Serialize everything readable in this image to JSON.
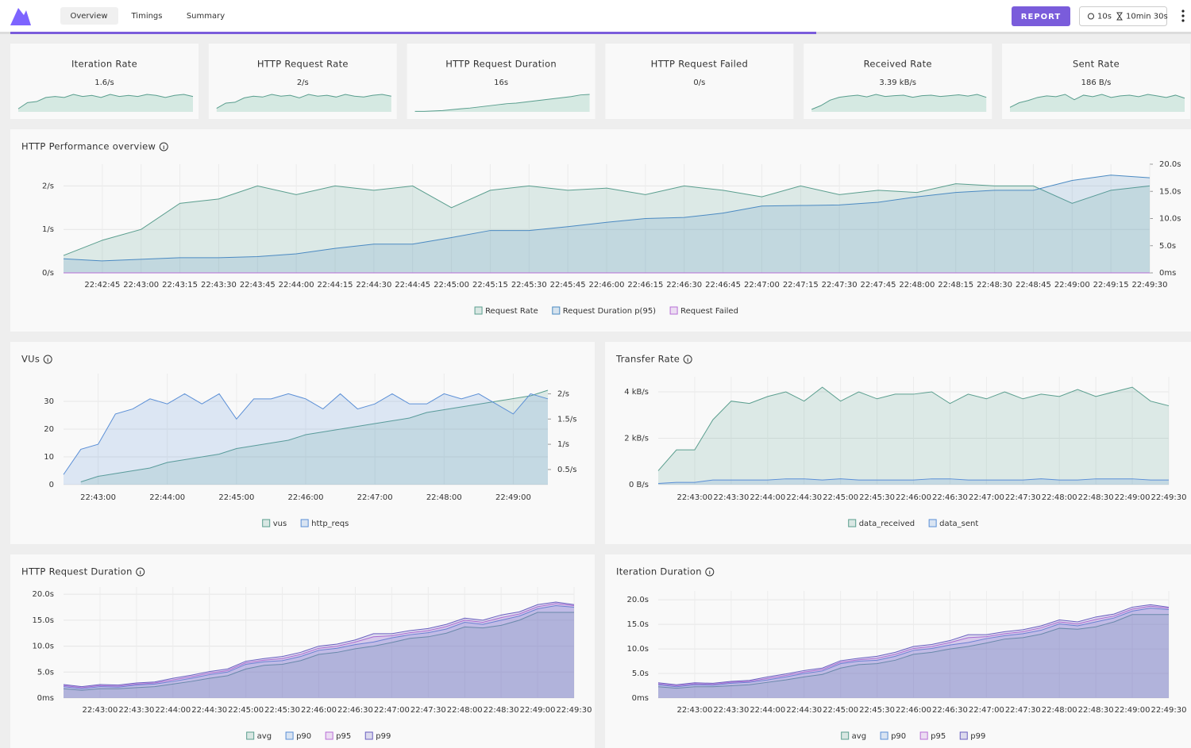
{
  "header": {
    "tabs": [
      "Overview",
      "Timings",
      "Summary"
    ],
    "button": "REPORT",
    "period": "10s",
    "duration": "10min 30s"
  },
  "cards": [
    {
      "title": "Iteration Rate",
      "value": "1.6/s",
      "sparkline": [
        0.3,
        0.9,
        1.0,
        1.4,
        1.5,
        1.4,
        1.7,
        1.5,
        1.6,
        1.4,
        1.7,
        1.5,
        1.6,
        1.5,
        1.7,
        1.6,
        1.4,
        1.6,
        1.7,
        1.5
      ]
    },
    {
      "title": "HTTP Request Rate",
      "value": "2/s",
      "sparkline": [
        0.4,
        1.0,
        1.1,
        1.6,
        1.8,
        1.7,
        2.0,
        1.8,
        1.9,
        1.6,
        2.0,
        1.8,
        1.9,
        1.7,
        2.0,
        1.8,
        1.7,
        1.9,
        2.0,
        1.8
      ]
    },
    {
      "title": "HTTP Request Duration",
      "value": "16s",
      "sparkline": [
        0.5,
        0.5,
        0.8,
        1.2,
        2.0,
        2.8,
        3.5,
        4.5,
        5.5,
        6.5,
        7.5,
        8.0,
        9.0,
        10.0,
        11.0,
        12.0,
        13.0,
        14.0,
        15.5,
        16.0
      ]
    },
    {
      "title": "HTTP Request Failed",
      "value": "0/s"
    },
    {
      "title": "Received Rate",
      "value": "3.39 kB/s",
      "sparkline": [
        0.6,
        1.5,
        2.8,
        3.5,
        3.8,
        4.0,
        3.6,
        4.2,
        3.7,
        3.9,
        4.0,
        3.5,
        3.9,
        4.0,
        3.7,
        3.9,
        4.1,
        3.8,
        4.2,
        3.5
      ]
    },
    {
      "title": "Sent Rate",
      "value": "186 B/s",
      "sparkline": [
        60,
        120,
        150,
        190,
        210,
        200,
        230,
        160,
        220,
        200,
        230,
        190,
        210,
        220,
        200,
        230,
        210,
        190,
        220,
        180
      ]
    }
  ],
  "charts": [
    {
      "type": "area",
      "title": "HTTP Performance overview",
      "grid": true,
      "x": [
        "22:42:30",
        "22:42:45",
        "22:43:00",
        "22:43:15",
        "22:43:30",
        "22:43:45",
        "22:44:00",
        "22:44:15",
        "22:44:30",
        "22:44:45",
        "22:45:00",
        "22:45:15",
        "22:45:30",
        "22:45:45",
        "22:46:00",
        "22:46:15",
        "22:46:30",
        "22:46:45",
        "22:47:00",
        "22:47:15",
        "22:47:30",
        "22:47:45",
        "22:48:00",
        "22:48:15",
        "22:48:30",
        "22:48:45",
        "22:49:00",
        "22:49:15",
        "22:49:30"
      ],
      "xlim": [
        "22:42:30",
        "22:49:30"
      ],
      "xticks": [
        "22:42:45",
        "22:43:00",
        "22:43:15",
        "22:43:30",
        "22:43:45",
        "22:44:00",
        "22:44:15",
        "22:44:30",
        "22:44:45",
        "22:45:00",
        "22:45:15",
        "22:45:30",
        "22:45:45",
        "22:46:00",
        "22:46:15",
        "22:46:30",
        "22:46:45",
        "22:47:00",
        "22:47:15",
        "22:47:30",
        "22:47:45",
        "22:48:00",
        "22:48:15",
        "22:48:30",
        "22:48:45",
        "22:49:00",
        "22:49:15",
        "22:49:30"
      ],
      "ylim": [
        0,
        2.5
      ],
      "yticks": [
        {
          "value": 0,
          "label": "0/s"
        },
        {
          "value": 1,
          "label": "1/s"
        },
        {
          "value": 2,
          "label": "2/s"
        }
      ],
      "y2lim": [
        0,
        20
      ],
      "y2ticks": [
        {
          "value": 0,
          "label": "0ms"
        },
        {
          "value": 5,
          "label": "5.0s"
        },
        {
          "value": 10,
          "label": "10.0s"
        },
        {
          "value": 15,
          "label": "15.0s"
        },
        {
          "value": 20,
          "label": "20.0s"
        }
      ],
      "series": [
        {
          "name": "Request Rate",
          "color": "#5a9e8e",
          "values": [
            0.4,
            0.75,
            1.0,
            1.6,
            1.7,
            2.0,
            1.8,
            2.0,
            1.9,
            2.0,
            1.5,
            1.9,
            2.0,
            1.9,
            1.95,
            1.8,
            2.0,
            1.9,
            1.75,
            2.0,
            1.8,
            1.9,
            1.85,
            2.05,
            2.0,
            2.0,
            1.6,
            1.9,
            2.0
          ]
        },
        {
          "name": "Request Duration p(95)",
          "color": "#4b8ac2",
          "axis": "y2",
          "values": [
            2.6,
            2.2,
            2.5,
            2.8,
            2.8,
            3.0,
            3.5,
            4.5,
            5.3,
            5.3,
            6.5,
            7.8,
            7.8,
            8.5,
            9.3,
            10.0,
            10.2,
            11.0,
            12.3,
            12.4,
            12.5,
            13.0,
            14.0,
            14.8,
            15.2,
            15.2,
            17.0,
            18.0,
            17.5
          ]
        },
        {
          "name": "Request Failed",
          "color": "#b86fd6",
          "values": [
            0,
            0,
            0,
            0,
            0,
            0,
            0,
            0,
            0,
            0,
            0,
            0,
            0,
            0,
            0,
            0,
            0,
            0,
            0,
            0,
            0,
            0,
            0,
            0,
            0,
            0,
            0,
            0,
            0
          ]
        }
      ]
    },
    {
      "type": "area",
      "title": "VUs",
      "grid": true,
      "x": [
        "22:42:30",
        "22:42:45",
        "22:43:00",
        "22:43:15",
        "22:43:30",
        "22:43:45",
        "22:44:00",
        "22:44:15",
        "22:44:30",
        "22:44:45",
        "22:45:00",
        "22:45:15",
        "22:45:30",
        "22:45:45",
        "22:46:00",
        "22:46:15",
        "22:46:30",
        "22:46:45",
        "22:47:00",
        "22:47:15",
        "22:47:30",
        "22:47:45",
        "22:48:00",
        "22:48:15",
        "22:48:30",
        "22:48:45",
        "22:49:00",
        "22:49:15",
        "22:49:30"
      ],
      "xlim": [
        "22:42:30",
        "22:49:30"
      ],
      "xticks": [
        "22:43:00",
        "22:44:00",
        "22:45:00",
        "22:46:00",
        "22:47:00",
        "22:48:00",
        "22:49:00"
      ],
      "ylim": [
        0,
        40
      ],
      "yticks": [
        0,
        10,
        20,
        30
      ],
      "y2lim": [
        0.2,
        2.4
      ],
      "y2ticks": [
        {
          "value": 0.5,
          "label": "0.5/s"
        },
        {
          "value": 1,
          "label": "1/s"
        },
        {
          "value": 1.5,
          "label": "1.5/s"
        },
        {
          "value": 2,
          "label": "2/s"
        }
      ],
      "series": [
        {
          "name": "vus",
          "color": "#5a9e8e",
          "values": [
            null,
            1,
            3,
            4,
            5,
            6,
            8,
            9,
            10,
            11,
            13,
            14,
            15,
            16,
            18,
            19,
            20,
            21,
            22,
            23,
            24,
            26,
            27,
            28,
            29,
            30,
            31,
            32,
            34
          ]
        },
        {
          "name": "http_reqs",
          "color": "#5b8fd6",
          "axis": "y2",
          "values": [
            0.4,
            0.9,
            1.0,
            1.6,
            1.7,
            1.9,
            1.8,
            2.0,
            1.8,
            2.0,
            1.5,
            1.9,
            1.9,
            2.0,
            1.9,
            1.7,
            2.0,
            1.7,
            1.8,
            2.0,
            1.8,
            1.8,
            2.0,
            1.9,
            2.0,
            1.8,
            1.6,
            2.0,
            1.9
          ]
        }
      ]
    },
    {
      "type": "area",
      "title": "Transfer Rate",
      "grid": true,
      "x": [
        "22:42:30",
        "22:42:45",
        "22:43:00",
        "22:43:15",
        "22:43:30",
        "22:43:45",
        "22:44:00",
        "22:44:15",
        "22:44:30",
        "22:44:45",
        "22:45:00",
        "22:45:15",
        "22:45:30",
        "22:45:45",
        "22:46:00",
        "22:46:15",
        "22:46:30",
        "22:46:45",
        "22:47:00",
        "22:47:15",
        "22:47:30",
        "22:47:45",
        "22:48:00",
        "22:48:15",
        "22:48:30",
        "22:48:45",
        "22:49:00",
        "22:49:15",
        "22:49:30"
      ],
      "xlim": [
        "22:42:30",
        "22:49:30"
      ],
      "xticks": [
        "22:43:00",
        "22:43:30",
        "22:44:00",
        "22:44:30",
        "22:45:00",
        "22:45:30",
        "22:46:00",
        "22:46:30",
        "22:47:00",
        "22:47:30",
        "22:48:00",
        "22:48:30",
        "22:49:00",
        "22:49:30"
      ],
      "ylim": [
        0,
        4.65
      ],
      "yticks": [
        {
          "value": 0,
          "label": "0 B/s"
        },
        {
          "value": 2,
          "label": "2 kB/s"
        },
        {
          "value": 4,
          "label": "4 kB/s"
        }
      ],
      "series": [
        {
          "name": "data_received",
          "color": "#5a9e8e",
          "values": [
            0.6,
            1.5,
            1.5,
            2.8,
            3.6,
            3.5,
            3.8,
            4.0,
            3.6,
            4.2,
            3.6,
            4.0,
            3.7,
            3.9,
            3.9,
            4.0,
            3.5,
            3.9,
            3.7,
            4.0,
            3.7,
            3.9,
            3.8,
            4.1,
            3.8,
            4.0,
            4.2,
            3.6,
            3.4
          ]
        },
        {
          "name": "data_sent",
          "color": "#5b8fd6",
          "values": [
            0.05,
            0.1,
            0.1,
            0.2,
            0.2,
            0.2,
            0.2,
            0.25,
            0.25,
            0.2,
            0.25,
            0.2,
            0.2,
            0.2,
            0.2,
            0.25,
            0.25,
            0.2,
            0.2,
            0.2,
            0.2,
            0.25,
            0.2,
            0.2,
            0.25,
            0.25,
            0.25,
            0.2,
            0.2
          ]
        }
      ]
    },
    {
      "type": "area",
      "title": "HTTP Request Duration",
      "grid": true,
      "x": [
        "22:42:30",
        "22:42:45",
        "22:43:00",
        "22:43:15",
        "22:43:30",
        "22:43:45",
        "22:44:00",
        "22:44:15",
        "22:44:30",
        "22:44:45",
        "22:45:00",
        "22:45:15",
        "22:45:30",
        "22:45:45",
        "22:46:00",
        "22:46:15",
        "22:46:30",
        "22:46:45",
        "22:47:00",
        "22:47:15",
        "22:47:30",
        "22:47:45",
        "22:48:00",
        "22:48:15",
        "22:48:30",
        "22:48:45",
        "22:49:00",
        "22:49:15",
        "22:49:30"
      ],
      "xlim": [
        "22:42:30",
        "22:49:30"
      ],
      "xticks": [
        "22:43:00",
        "22:43:30",
        "22:44:00",
        "22:44:30",
        "22:45:00",
        "22:45:30",
        "22:46:00",
        "22:46:30",
        "22:47:00",
        "22:47:30",
        "22:48:00",
        "22:48:30",
        "22:49:00",
        "22:49:30"
      ],
      "ylim": [
        0,
        21.4
      ],
      "yticks": [
        {
          "value": 0,
          "label": "0ms"
        },
        {
          "value": 5,
          "label": "5.0s"
        },
        {
          "value": 10,
          "label": "10.0s"
        },
        {
          "value": 15,
          "label": "15.0s"
        },
        {
          "value": 20,
          "label": "20.0s"
        }
      ],
      "series": [
        {
          "name": "avg",
          "color": "#5a9e8e",
          "values": [
            1.8,
            1.5,
            1.8,
            1.8,
            2.0,
            2.2,
            2.7,
            3.2,
            3.8,
            4.3,
            5.6,
            6.3,
            6.5,
            7.2,
            8.4,
            8.8,
            9.5,
            10.0,
            10.7,
            11.5,
            11.8,
            12.5,
            13.7,
            13.5,
            14.0,
            15.0,
            16.5,
            16.5,
            16.5
          ]
        },
        {
          "name": "p90",
          "color": "#5b8fd6",
          "values": [
            2.2,
            1.8,
            2.2,
            2.1,
            2.5,
            2.7,
            3.2,
            3.8,
            4.5,
            5.0,
            6.5,
            7.0,
            7.2,
            8.0,
            9.2,
            9.6,
            10.3,
            10.8,
            11.6,
            12.2,
            12.6,
            13.3,
            14.6,
            14.2,
            15.0,
            15.8,
            17.2,
            17.8,
            17.5
          ]
        },
        {
          "name": "p95",
          "color": "#b86fd6",
          "values": [
            2.4,
            2.0,
            2.4,
            2.3,
            2.7,
            2.9,
            3.5,
            4.1,
            4.8,
            5.3,
            6.8,
            7.3,
            7.6,
            8.4,
            9.6,
            10.0,
            10.8,
            11.8,
            12.0,
            12.6,
            13.0,
            13.8,
            15.0,
            14.6,
            15.5,
            16.2,
            17.6,
            18.2,
            17.8
          ]
        },
        {
          "name": "p99",
          "color": "#6a5fc0",
          "values": [
            2.6,
            2.2,
            2.6,
            2.5,
            2.9,
            3.1,
            3.8,
            4.4,
            5.1,
            5.6,
            7.1,
            7.6,
            8.0,
            8.8,
            10.0,
            10.4,
            11.2,
            12.4,
            12.4,
            13.0,
            13.4,
            14.2,
            15.4,
            15.0,
            16.0,
            16.6,
            18.0,
            18.5,
            18.0
          ]
        }
      ]
    },
    {
      "type": "area",
      "title": "Iteration Duration",
      "grid": true,
      "x": [
        "22:42:30",
        "22:42:45",
        "22:43:00",
        "22:43:15",
        "22:43:30",
        "22:43:45",
        "22:44:00",
        "22:44:15",
        "22:44:30",
        "22:44:45",
        "22:45:00",
        "22:45:15",
        "22:45:30",
        "22:45:45",
        "22:46:00",
        "22:46:15",
        "22:46:30",
        "22:46:45",
        "22:47:00",
        "22:47:15",
        "22:47:30",
        "22:47:45",
        "22:48:00",
        "22:48:15",
        "22:48:30",
        "22:48:45",
        "22:49:00",
        "22:49:15",
        "22:49:30"
      ],
      "xlim": [
        "22:42:30",
        "22:49:30"
      ],
      "xticks": [
        "22:43:00",
        "22:43:30",
        "22:44:00",
        "22:44:30",
        "22:45:00",
        "22:45:30",
        "22:46:00",
        "22:46:30",
        "22:47:00",
        "22:47:30",
        "22:48:00",
        "22:48:30",
        "22:49:00",
        "22:49:30"
      ],
      "ylim": [
        0,
        21.8
      ],
      "yticks": [
        {
          "value": 0,
          "label": "0ms"
        },
        {
          "value": 5,
          "label": "5.0s"
        },
        {
          "value": 10,
          "label": "10.0s"
        },
        {
          "value": 15,
          "label": "15.0s"
        },
        {
          "value": 20,
          "label": "20.0s"
        }
      ],
      "series": [
        {
          "name": "avg",
          "color": "#5a9e8e",
          "values": [
            2.3,
            2.0,
            2.3,
            2.3,
            2.5,
            2.7,
            3.2,
            3.7,
            4.3,
            4.8,
            6.1,
            6.8,
            7.0,
            7.7,
            8.9,
            9.3,
            10.0,
            10.5,
            11.2,
            12.0,
            12.3,
            13.0,
            14.2,
            14.0,
            14.5,
            15.5,
            17.0,
            17.0,
            17.0
          ]
        },
        {
          "name": "p90",
          "color": "#5b8fd6",
          "values": [
            2.7,
            2.3,
            2.7,
            2.6,
            3.0,
            3.2,
            3.7,
            4.3,
            5.0,
            5.5,
            7.0,
            7.5,
            7.7,
            8.5,
            9.7,
            10.1,
            10.8,
            11.3,
            12.1,
            12.7,
            13.1,
            13.8,
            15.1,
            14.7,
            15.5,
            16.3,
            17.7,
            18.3,
            18.0
          ]
        },
        {
          "name": "p95",
          "color": "#b86fd6",
          "values": [
            2.9,
            2.5,
            2.9,
            2.8,
            3.2,
            3.4,
            4.0,
            4.6,
            5.3,
            5.8,
            7.3,
            7.8,
            8.1,
            8.9,
            10.1,
            10.5,
            11.3,
            12.3,
            12.5,
            13.1,
            13.5,
            14.3,
            15.5,
            15.1,
            16.0,
            16.7,
            18.1,
            18.7,
            18.3
          ]
        },
        {
          "name": "p99",
          "color": "#6a5fc0",
          "values": [
            3.1,
            2.7,
            3.1,
            3.0,
            3.4,
            3.6,
            4.3,
            4.9,
            5.6,
            6.1,
            7.6,
            8.1,
            8.5,
            9.3,
            10.5,
            10.9,
            11.7,
            12.9,
            12.9,
            13.5,
            13.9,
            14.7,
            15.9,
            15.5,
            16.5,
            17.1,
            18.5,
            19.0,
            18.5
          ]
        }
      ]
    }
  ]
}
